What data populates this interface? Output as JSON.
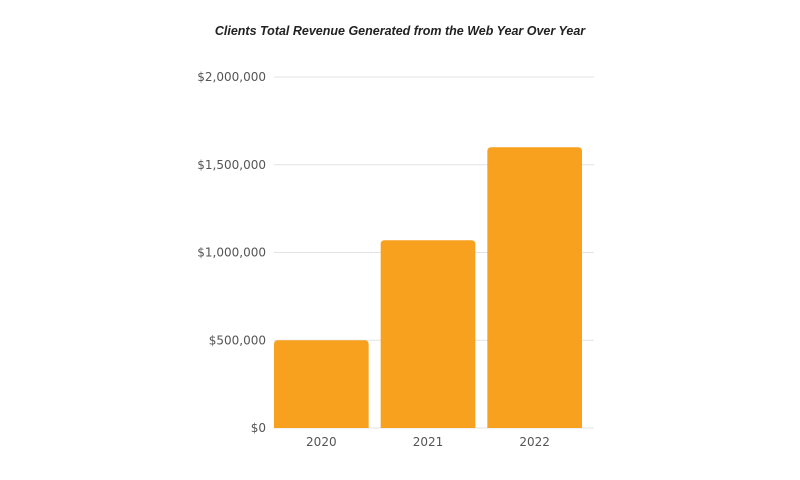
{
  "chart_data": {
    "type": "bar",
    "title": "Clients Total Revenue Generated from the Web Year Over Year",
    "xlabel": "",
    "ylabel": "",
    "categories": [
      "2020",
      "2021",
      "2022"
    ],
    "values": [
      500000,
      1070000,
      1600000
    ],
    "ylim": [
      0,
      2000000
    ],
    "yticks": [
      0,
      500000,
      1000000,
      1500000,
      2000000
    ],
    "ytick_labels": [
      "$0",
      "$500,000",
      "$1,000,000",
      "$1,500,000",
      "$2,000,000"
    ],
    "grid": true,
    "legend": "none",
    "bar_color": "#F7A11E",
    "grid_color": "#E3E3E3"
  }
}
